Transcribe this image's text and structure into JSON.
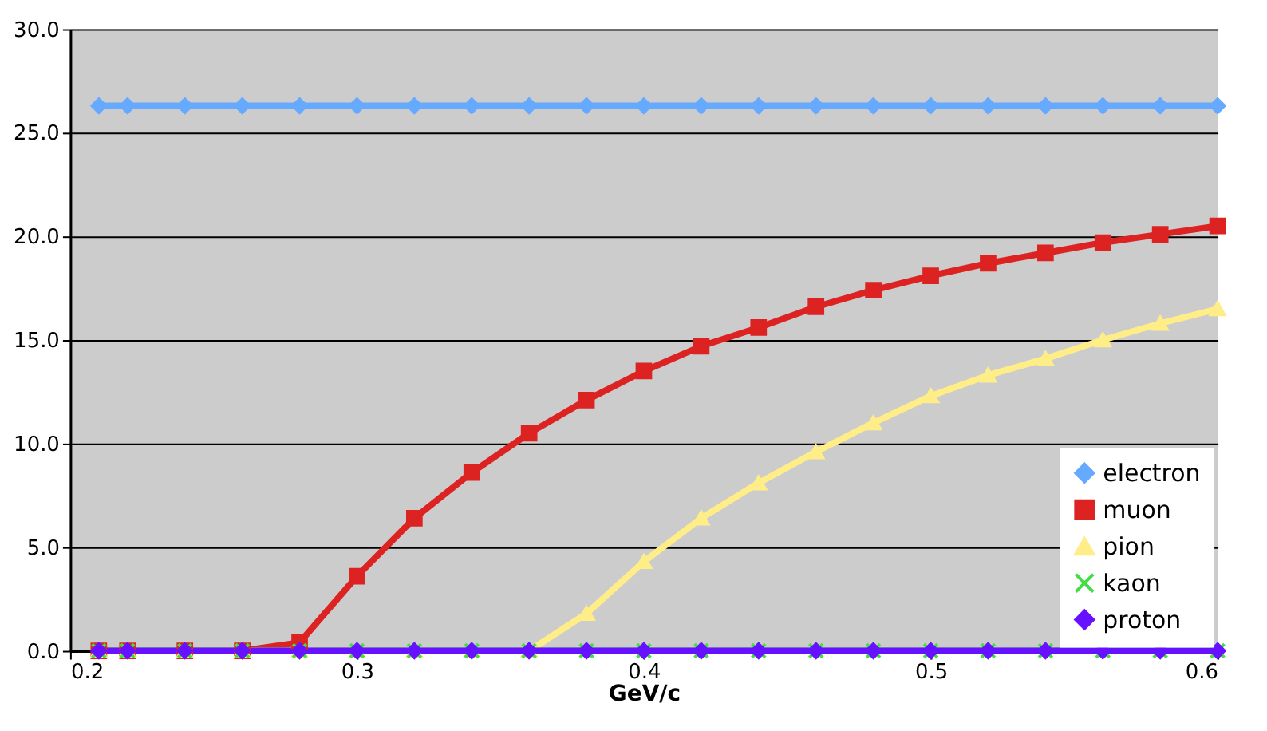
{
  "chart_data": {
    "type": "line",
    "xlabel": "GeV/c",
    "x": [
      0.21,
      0.22,
      0.24,
      0.26,
      0.28,
      0.3,
      0.32,
      0.34,
      0.36,
      0.38,
      0.4,
      0.42,
      0.44,
      0.46,
      0.48,
      0.5,
      0.52,
      0.54,
      0.56,
      0.58,
      0.6
    ],
    "series": [
      {
        "name": "electron",
        "color": "#66aaff",
        "marker": "diamond",
        "values": [
          26.3,
          26.3,
          26.3,
          26.3,
          26.3,
          26.3,
          26.3,
          26.3,
          26.3,
          26.3,
          26.3,
          26.3,
          26.3,
          26.3,
          26.3,
          26.3,
          26.3,
          26.3,
          26.3,
          26.3,
          26.3
        ]
      },
      {
        "name": "muon",
        "color": "#dd2222",
        "marker": "square",
        "values": [
          0,
          0,
          0,
          0,
          0.4,
          3.6,
          6.4,
          8.6,
          10.5,
          12.1,
          13.5,
          14.7,
          15.6,
          16.6,
          17.4,
          18.1,
          18.7,
          19.2,
          19.7,
          20.1,
          20.5
        ]
      },
      {
        "name": "pion",
        "color": "#ffee88",
        "marker": "triangle",
        "values": [
          0,
          0,
          0,
          0,
          0,
          0,
          0,
          0,
          0,
          1.8,
          4.3,
          6.4,
          8.1,
          9.6,
          11.0,
          12.3,
          13.3,
          14.1,
          15.0,
          15.8,
          16.5
        ]
      },
      {
        "name": "kaon",
        "color": "#44dd44",
        "marker": "cross",
        "values": [
          0,
          0,
          0,
          0,
          0,
          0,
          0,
          0,
          0,
          0,
          0,
          0,
          0,
          0,
          0,
          0,
          0,
          0,
          0,
          0,
          0
        ]
      },
      {
        "name": "proton",
        "color": "#6611ff",
        "marker": "diamond",
        "values": [
          0,
          0,
          0,
          0,
          0,
          0,
          0,
          0,
          0,
          0,
          0,
          0,
          0,
          0,
          0,
          0,
          0,
          0,
          0,
          0,
          0
        ]
      }
    ],
    "xlim": [
      0.2,
      0.6
    ],
    "xticks": [
      0.2,
      0.3,
      0.4,
      0.5,
      0.6
    ],
    "ylim": [
      0,
      30
    ],
    "yticks": [
      {
        "value": 0,
        "label": "0.0"
      },
      {
        "value": 5,
        "label": "5.0"
      },
      {
        "value": 10,
        "label": "10.0"
      },
      {
        "value": 15,
        "label": "15.0"
      },
      {
        "value": 20,
        "label": "20.0"
      },
      {
        "value": 25,
        "label": "25.0"
      },
      {
        "value": 30,
        "label": "30.0"
      }
    ],
    "grid": "y",
    "legend": "bottom right",
    "line_style": "solid"
  }
}
